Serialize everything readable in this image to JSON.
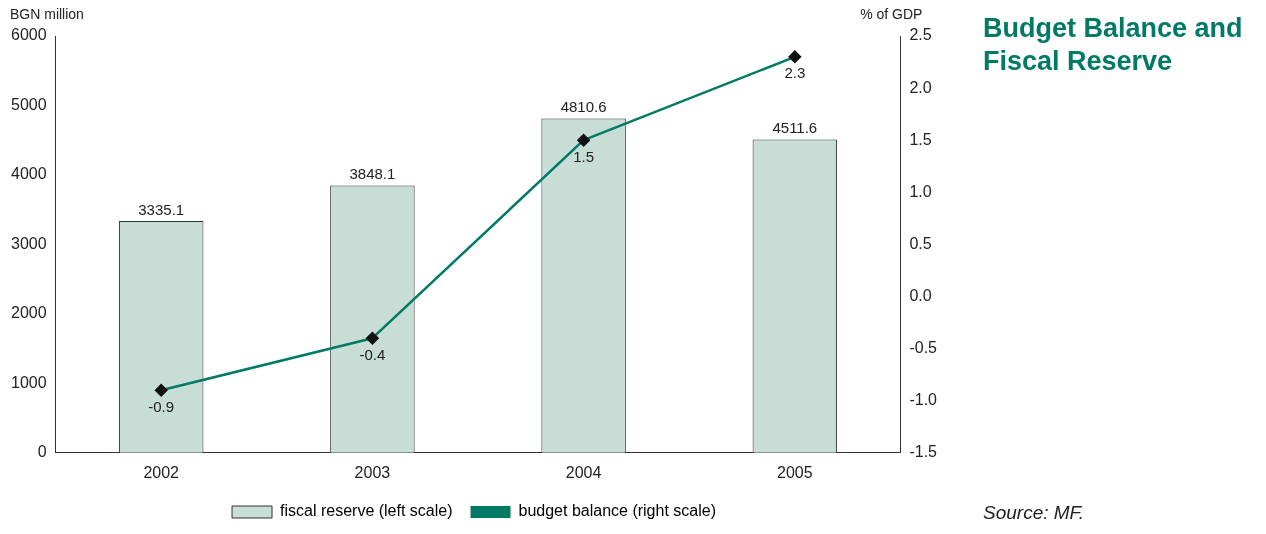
{
  "chart_data": {
    "type": "bar",
    "title": "Budget Balance and Fiscal Reserve",
    "ylabel": "BGN million",
    "y2label": "% of GDP",
    "categories": [
      "2002",
      "2003",
      "2004",
      "2005"
    ],
    "series": [
      {
        "name": "fiscal reserve (left scale)",
        "color": "#c8ddd5",
        "values": [
          3335.1,
          3848.1,
          4810.6,
          4511.6
        ]
      },
      {
        "name": "budget balance (right scale)",
        "type": "line",
        "axis": "y2",
        "color": "#007a64",
        "values": [
          -0.9,
          -0.4,
          1.5,
          2.3
        ]
      }
    ],
    "ylim": [
      0,
      6000
    ],
    "yticks": [
      0,
      1000,
      2000,
      3000,
      4000,
      5000,
      6000
    ],
    "y2lim": [
      -1.5,
      2.5
    ],
    "y2ticks": [
      {
        "value": -1.5,
        "label": "-1.5"
      },
      {
        "value": -1.0,
        "label": "-1.0"
      },
      {
        "value": -0.5,
        "label": "-0.5"
      },
      {
        "value": 0,
        "label": "0.0"
      },
      {
        "value": 0.5,
        "label": "0.5"
      },
      {
        "value": 1.0,
        "label": "1.0"
      },
      {
        "value": 1.5,
        "label": "1.5"
      },
      {
        "value": 2.0,
        "label": "2.0"
      },
      {
        "value": 2.5,
        "label": "2.5"
      }
    ],
    "data_labels": true,
    "legend": "bottom",
    "marker": "diamond",
    "grid": false,
    "annotations": [
      "Source: MF."
    ]
  }
}
